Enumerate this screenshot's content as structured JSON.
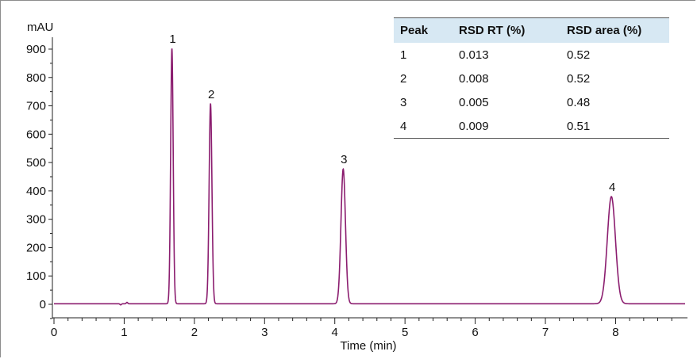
{
  "chart_data": {
    "type": "line",
    "title": "",
    "xlabel": "Time (min)",
    "ylabel": "mAU",
    "xlim": [
      0,
      9
    ],
    "ylim": [
      -60,
      950
    ],
    "x_ticks": [
      "0",
      "1",
      "2",
      "3",
      "4",
      "5",
      "6",
      "7",
      "8"
    ],
    "y_ticks": [
      "0",
      "100",
      "200",
      "300",
      "400",
      "500",
      "600",
      "700",
      "800",
      "900"
    ],
    "grid": false,
    "line_color": "#8b1d6f",
    "baseline_mAU": 2,
    "peaks": [
      {
        "label": "1",
        "retention_time_min": 1.68,
        "height_mAU": 900,
        "width_min": 0.018
      },
      {
        "label": "2",
        "retention_time_min": 2.23,
        "height_mAU": 705,
        "width_min": 0.02
      },
      {
        "label": "3",
        "retention_time_min": 4.12,
        "height_mAU": 475,
        "width_min": 0.032
      },
      {
        "label": "4",
        "retention_time_min": 7.94,
        "height_mAU": 378,
        "width_min": 0.058
      }
    ],
    "artifacts": [
      {
        "time_min": 0.95,
        "height_mAU": -4,
        "width_min": 0.01
      },
      {
        "time_min": 1.04,
        "height_mAU": 5,
        "width_min": 0.01
      }
    ]
  },
  "results_table": {
    "headers": [
      "Peak",
      "RSD RT (%)",
      "RSD area (%)"
    ],
    "rows": [
      [
        "1",
        "0.013",
        "0.52"
      ],
      [
        "2",
        "0.008",
        "0.52"
      ],
      [
        "3",
        "0.005",
        "0.48"
      ],
      [
        "4",
        "0.009",
        "0.51"
      ]
    ]
  }
}
